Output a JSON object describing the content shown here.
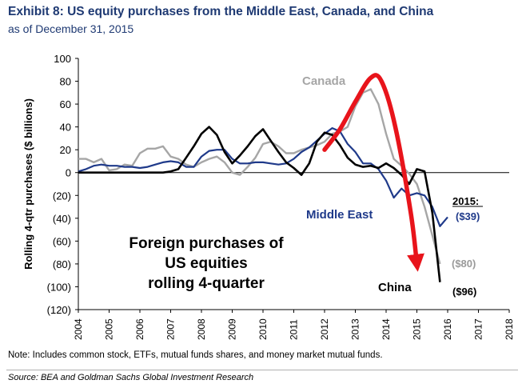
{
  "header": {
    "title": "Exhibit 8: US equity purchases from the Middle East, Canada, and China",
    "subtitle": "as of December 31, 2015"
  },
  "footer": {
    "note": "Note: Includes common stock, ETFs, mutual funds shares, and money market mutual funds.",
    "source": "Source: BEA and Goldman Sachs Global Investment Research"
  },
  "chart_data": {
    "type": "line",
    "ylabel": "Rolling 4-qtr purchases ($ billions)",
    "ylim": [
      -120,
      100
    ],
    "xlim": [
      2004,
      2018
    ],
    "y_ticks": [
      100,
      80,
      60,
      40,
      20,
      0,
      -20,
      -40,
      -60,
      -80,
      -100,
      -120
    ],
    "y_tick_labels": [
      "100",
      "80",
      "60",
      "40",
      "20",
      "0",
      "(20)",
      "(40)",
      "(60)",
      "(80)",
      "(100)",
      "(120)"
    ],
    "x_ticks": [
      2004,
      2005,
      2006,
      2007,
      2008,
      2009,
      2010,
      2011,
      2012,
      2013,
      2014,
      2015,
      2016,
      2017,
      2018
    ],
    "grid": false,
    "annotation_text": "Foreign purchases of\nUS equities\nrolling 4-quarter",
    "year_end_header": "2015:",
    "series": [
      {
        "name": "Canada",
        "color": "#a6a6a6",
        "end_label": "($80)",
        "end_label_color": "#9a9a9a",
        "points": [
          [
            2004.0,
            12
          ],
          [
            2004.25,
            12
          ],
          [
            2004.5,
            9
          ],
          [
            2004.75,
            12
          ],
          [
            2005.0,
            2
          ],
          [
            2005.25,
            3
          ],
          [
            2005.5,
            7
          ],
          [
            2005.75,
            6
          ],
          [
            2006.0,
            17
          ],
          [
            2006.25,
            21
          ],
          [
            2006.5,
            21
          ],
          [
            2006.75,
            23
          ],
          [
            2007.0,
            14
          ],
          [
            2007.25,
            12
          ],
          [
            2007.5,
            7
          ],
          [
            2007.75,
            5
          ],
          [
            2008.0,
            9
          ],
          [
            2008.25,
            12
          ],
          [
            2008.5,
            14
          ],
          [
            2008.75,
            9
          ],
          [
            2009.0,
            0
          ],
          [
            2009.25,
            -2
          ],
          [
            2009.5,
            5
          ],
          [
            2009.75,
            13
          ],
          [
            2010.0,
            25
          ],
          [
            2010.25,
            27
          ],
          [
            2010.5,
            23
          ],
          [
            2010.75,
            17
          ],
          [
            2011.0,
            17
          ],
          [
            2011.25,
            20
          ],
          [
            2011.5,
            22
          ],
          [
            2011.75,
            24
          ],
          [
            2012.0,
            27
          ],
          [
            2012.25,
            34
          ],
          [
            2012.5,
            36
          ],
          [
            2012.75,
            40
          ],
          [
            2013.0,
            58
          ],
          [
            2013.25,
            70
          ],
          [
            2013.5,
            73
          ],
          [
            2013.75,
            60
          ],
          [
            2014.0,
            34
          ],
          [
            2014.25,
            12
          ],
          [
            2014.5,
            6
          ],
          [
            2014.75,
            -1
          ],
          [
            2015.0,
            -10
          ],
          [
            2015.25,
            -30
          ],
          [
            2015.5,
            -55
          ],
          [
            2015.75,
            -80
          ]
        ]
      },
      {
        "name": "Middle East",
        "color": "#1f3a8a",
        "end_label": "($39)",
        "end_label_color": "#1f3a8a",
        "points": [
          [
            2004.0,
            1
          ],
          [
            2004.25,
            3
          ],
          [
            2004.5,
            6
          ],
          [
            2004.75,
            7
          ],
          [
            2005.0,
            6
          ],
          [
            2005.25,
            6
          ],
          [
            2005.5,
            5
          ],
          [
            2005.75,
            5
          ],
          [
            2006.0,
            4
          ],
          [
            2006.25,
            5
          ],
          [
            2006.5,
            7
          ],
          [
            2006.75,
            9
          ],
          [
            2007.0,
            10
          ],
          [
            2007.25,
            9
          ],
          [
            2007.5,
            5
          ],
          [
            2007.75,
            5
          ],
          [
            2008.0,
            14
          ],
          [
            2008.25,
            19
          ],
          [
            2008.5,
            20
          ],
          [
            2008.75,
            20
          ],
          [
            2009.0,
            12
          ],
          [
            2009.25,
            8
          ],
          [
            2009.5,
            8
          ],
          [
            2009.75,
            9
          ],
          [
            2010.0,
            9
          ],
          [
            2010.25,
            8
          ],
          [
            2010.5,
            7
          ],
          [
            2010.75,
            8
          ],
          [
            2011.0,
            12
          ],
          [
            2011.25,
            18
          ],
          [
            2011.5,
            22
          ],
          [
            2011.75,
            28
          ],
          [
            2012.0,
            34
          ],
          [
            2012.25,
            39
          ],
          [
            2012.5,
            36
          ],
          [
            2012.75,
            25
          ],
          [
            2013.0,
            18
          ],
          [
            2013.25,
            8
          ],
          [
            2013.5,
            8
          ],
          [
            2013.75,
            3
          ],
          [
            2014.0,
            -7
          ],
          [
            2014.25,
            -22
          ],
          [
            2014.5,
            -14
          ],
          [
            2014.75,
            -20
          ],
          [
            2015.0,
            -18
          ],
          [
            2015.25,
            -20
          ],
          [
            2015.5,
            -30
          ],
          [
            2015.75,
            -47
          ],
          [
            2016.0,
            -39
          ]
        ]
      },
      {
        "name": "China",
        "color": "#000000",
        "end_label": "($96)",
        "end_label_color": "#000000",
        "points": [
          [
            2004.0,
            0
          ],
          [
            2004.25,
            0
          ],
          [
            2004.5,
            0
          ],
          [
            2004.75,
            0
          ],
          [
            2005.0,
            0
          ],
          [
            2005.25,
            0
          ],
          [
            2005.5,
            0
          ],
          [
            2005.75,
            0
          ],
          [
            2006.0,
            0
          ],
          [
            2006.25,
            0
          ],
          [
            2006.5,
            0
          ],
          [
            2006.75,
            0
          ],
          [
            2007.0,
            1
          ],
          [
            2007.25,
            3
          ],
          [
            2007.5,
            13
          ],
          [
            2007.75,
            23
          ],
          [
            2008.0,
            34
          ],
          [
            2008.25,
            40
          ],
          [
            2008.5,
            33
          ],
          [
            2008.75,
            18
          ],
          [
            2009.0,
            8
          ],
          [
            2009.25,
            15
          ],
          [
            2009.5,
            23
          ],
          [
            2009.75,
            32
          ],
          [
            2010.0,
            38
          ],
          [
            2010.25,
            28
          ],
          [
            2010.5,
            18
          ],
          [
            2010.75,
            9
          ],
          [
            2011.0,
            4
          ],
          [
            2011.25,
            -2
          ],
          [
            2011.5,
            8
          ],
          [
            2011.75,
            27
          ],
          [
            2012.0,
            35
          ],
          [
            2012.25,
            33
          ],
          [
            2012.5,
            24
          ],
          [
            2012.75,
            13
          ],
          [
            2013.0,
            7
          ],
          [
            2013.25,
            5
          ],
          [
            2013.5,
            6
          ],
          [
            2013.75,
            4
          ],
          [
            2014.0,
            8
          ],
          [
            2014.25,
            4
          ],
          [
            2014.5,
            -2
          ],
          [
            2014.75,
            -10
          ],
          [
            2015.0,
            3
          ],
          [
            2015.25,
            1
          ],
          [
            2015.5,
            -35
          ],
          [
            2015.75,
            -96
          ]
        ]
      }
    ],
    "arrow": {
      "color": "#e8141b",
      "path": [
        [
          2012.0,
          20
        ],
        [
          2012.5,
          38
        ],
        [
          2013.0,
          62
        ],
        [
          2013.5,
          83
        ],
        [
          2013.85,
          80
        ],
        [
          2014.3,
          40
        ],
        [
          2014.8,
          -35
        ],
        [
          2015.0,
          -80
        ]
      ]
    }
  }
}
